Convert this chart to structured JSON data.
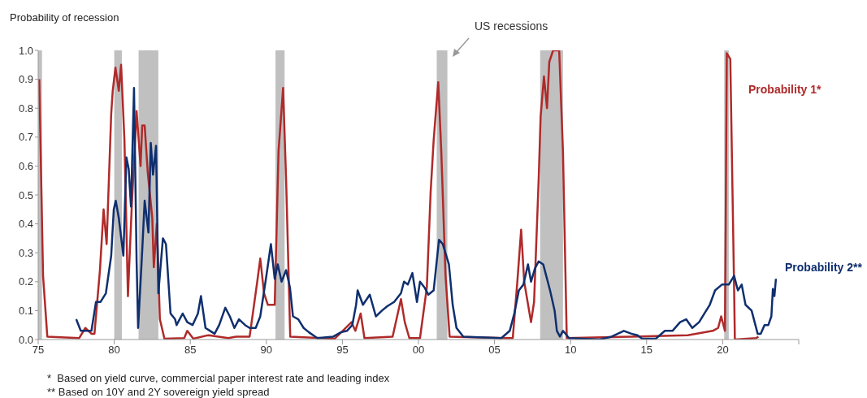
{
  "chart_data": {
    "type": "line",
    "ylabel": "Probability of recession",
    "xlim": [
      1975,
      2025
    ],
    "xticks": [
      {
        "value": 1975,
        "label": "75"
      },
      {
        "value": 1980,
        "label": "80"
      },
      {
        "value": 1985,
        "label": "85"
      },
      {
        "value": 1990,
        "label": "90"
      },
      {
        "value": 1995,
        "label": "95"
      },
      {
        "value": 2000,
        "label": "00"
      },
      {
        "value": 2005,
        "label": "05"
      },
      {
        "value": 2010,
        "label": "10"
      },
      {
        "value": 2015,
        "label": "15"
      },
      {
        "value": 2020,
        "label": "20"
      },
      {
        "value": 2025,
        "label": null
      }
    ],
    "ylim": [
      0,
      1
    ],
    "yticks": [
      {
        "value": 0,
        "label": "0.0"
      },
      0.1,
      0.2,
      0.3,
      0.4,
      0.5,
      0.6,
      0.7,
      0.8,
      0.9,
      {
        "value": 1,
        "label": "1.0"
      }
    ],
    "grid": false,
    "marker": "none",
    "line_style": "solid",
    "bands": [
      {
        "axis": "x",
        "from": 1975,
        "to": 1975.25,
        "color": "#c0c0c0"
      },
      {
        "axis": "x",
        "from": 1980,
        "to": 1980.5,
        "color": "#c0c0c0"
      },
      {
        "axis": "x",
        "from": 1981.6,
        "to": 1982.9,
        "color": "#c0c0c0"
      },
      {
        "axis": "x",
        "from": 1990.6,
        "to": 1991.2,
        "color": "#c0c0c0"
      },
      {
        "axis": "x",
        "from": 2001.2,
        "to": 2001.9,
        "color": "#c0c0c0"
      },
      {
        "axis": "x",
        "from": 2008,
        "to": 2009.5,
        "color": "#c0c0c0"
      },
      {
        "axis": "x",
        "from": 2020.1,
        "to": 2020.4,
        "color": "#c0c0c0"
      }
    ],
    "annotations": [
      "US recessions",
      "*  Based on yield curve, commercial paper interest rate and leading index",
      "** Based on 10Y and 2Y sovereign yield spread"
    ],
    "series": [
      {
        "name": "Probability 1*",
        "color": "#b02a2a",
        "x": [
          1975.07,
          1975.32,
          1975.6,
          1977.7,
          1978.1,
          1978.5,
          1978.7,
          1979.06,
          1979.3,
          1979.5,
          1979.8,
          1979.9,
          1980.08,
          1980.3,
          1980.45,
          1980.67,
          1980.9,
          1981.15,
          1981.47,
          1981.73,
          1981.84,
          1982,
          1982.2,
          1982.5,
          1982.6,
          1982.8,
          1983,
          1983.3,
          1984.6,
          1984.8,
          1985.2,
          1986.2,
          1987.5,
          1988,
          1988.9,
          1989.4,
          1989.6,
          1989.85,
          1990.1,
          1990.55,
          1990.8,
          1991.1,
          1991.3,
          1991.57,
          1994.5,
          1995.6,
          1995.85,
          1996.2,
          1996.45,
          1998.3,
          1998.85,
          1999.1,
          1999.4,
          2000.1,
          2000.55,
          2000.8,
          2001,
          2001.3,
          2001.5,
          2001.78,
          2002.05,
          2005.7,
          2006.2,
          2006.5,
          2006.75,
          2006.95,
          2007.4,
          2007.6,
          2007.9,
          2008.03,
          2008.25,
          2008.45,
          2008.6,
          2008.85,
          2009.25,
          2009.5,
          2009.75,
          2014,
          2017.7,
          2019.35,
          2019.7,
          2019.9,
          2020.15,
          2020.27,
          2020.5,
          2020.75,
          2020.8,
          2022.2,
          2022.35
        ],
        "values": [
          0.9,
          0.22,
          0.01,
          0.005,
          0.04,
          0.02,
          0.02,
          0.24,
          0.45,
          0.33,
          0.78,
          0.86,
          0.94,
          0.86,
          0.95,
          0.69,
          0.15,
          0.46,
          0.79,
          0.6,
          0.74,
          0.74,
          0.58,
          0.42,
          0.25,
          0.4,
          0.07,
          0.003,
          0.005,
          0.03,
          0.003,
          0.015,
          0.005,
          0.01,
          0.01,
          0.2,
          0.28,
          0.16,
          0.12,
          0.12,
          0.65,
          0.87,
          0.55,
          0.01,
          0.003,
          0.06,
          0.03,
          0.09,
          0.005,
          0.01,
          0.14,
          0.06,
          0.005,
          0.005,
          0.18,
          0.51,
          0.69,
          0.89,
          0.65,
          0.22,
          0.01,
          0.005,
          0.005,
          0.2,
          0.38,
          0.2,
          0.06,
          0.13,
          0.55,
          0.77,
          0.91,
          0.8,
          0.96,
          1,
          1,
          0.65,
          0.005,
          0.01,
          0.015,
          0.03,
          0.04,
          0.08,
          0.03,
          0.99,
          0.97,
          0.18,
          0,
          0.005,
          0.01
        ]
      },
      {
        "name": "Probability 2**",
        "color": "#0f2f6e",
        "x": [
          1977.5,
          1977.8,
          1978.2,
          1978.5,
          1978.8,
          1979.1,
          1979.45,
          1979.8,
          1979.97,
          1980.1,
          1980.3,
          1980.6,
          1980.8,
          1980.95,
          1981.1,
          1981.3,
          1981.47,
          1981.57,
          1981.85,
          1982,
          1982.25,
          1982.4,
          1982.55,
          1982.75,
          1982.9,
          1983.2,
          1983.4,
          1983.7,
          1984,
          1984.1,
          1984.5,
          1984.8,
          1985.15,
          1985.5,
          1985.7,
          1986,
          1986.3,
          1986.6,
          1986.9,
          1987.3,
          1987.6,
          1987.9,
          1988.2,
          1988.6,
          1988.9,
          1989.3,
          1989.6,
          1990,
          1990.3,
          1990.55,
          1990.75,
          1991,
          1991.3,
          1991.55,
          1991.75,
          1992.1,
          1992.45,
          1992.8,
          1993.35,
          1994.4,
          1994.9,
          1995.3,
          1995.65,
          1995.9,
          1996,
          1996.35,
          1996.8,
          1997.2,
          1997.6,
          1997.95,
          1998.4,
          1998.85,
          1999.05,
          1999.3,
          1999.6,
          1999.9,
          2000.1,
          2000.4,
          2000.65,
          2001,
          2001.35,
          2001.6,
          2002,
          2002.25,
          2002.5,
          2002.95,
          2005.45,
          2006,
          2006.3,
          2006.6,
          2006.9,
          2007.2,
          2007.4,
          2007.65,
          2007.9,
          2008.2,
          2008.4,
          2008.65,
          2008.95,
          2009.1,
          2009.3,
          2009.5,
          2009.9,
          2011.9,
          2012.7,
          2013.5,
          2014,
          2014.4,
          2014.7,
          2015.6,
          2016.2,
          2016.7,
          2017.2,
          2017.6,
          2018,
          2018.45,
          2018.8,
          2019.15,
          2019.5,
          2019.95,
          2020.4,
          2020.75,
          2021,
          2021.25,
          2021.5,
          2021.9,
          2022.3,
          2022.5,
          2022.75,
          2023,
          2023.2,
          2023.3,
          2023.4,
          2023.5
        ],
        "values": [
          0.07,
          0.03,
          0.03,
          0.03,
          0.13,
          0.13,
          0.16,
          0.29,
          0.45,
          0.48,
          0.42,
          0.29,
          0.63,
          0.59,
          0.46,
          0.87,
          0.27,
          0.04,
          0.32,
          0.48,
          0.37,
          0.68,
          0.57,
          0.67,
          0.16,
          0.35,
          0.33,
          0.09,
          0.07,
          0.05,
          0.09,
          0.06,
          0.05,
          0.09,
          0.15,
          0.04,
          0.03,
          0.02,
          0.05,
          0.11,
          0.08,
          0.04,
          0.07,
          0.05,
          0.04,
          0.04,
          0.08,
          0.22,
          0.33,
          0.21,
          0.26,
          0.2,
          0.24,
          0.18,
          0.08,
          0.07,
          0.04,
          0.025,
          0.005,
          0.01,
          0.025,
          0.03,
          0.05,
          0.12,
          0.17,
          0.12,
          0.155,
          0.08,
          0.1,
          0.115,
          0.13,
          0.16,
          0.2,
          0.19,
          0.23,
          0.13,
          0.2,
          0.18,
          0.155,
          0.17,
          0.345,
          0.33,
          0.26,
          0.12,
          0.04,
          0.01,
          0.005,
          0.03,
          0.09,
          0.17,
          0.19,
          0.26,
          0.2,
          0.245,
          0.27,
          0.26,
          0.22,
          0.17,
          0.1,
          0.03,
          0.01,
          0.03,
          0.005,
          0,
          0.01,
          0.03,
          0.02,
          0.015,
          0.003,
          0.003,
          0.03,
          0.03,
          0.06,
          0.07,
          0.04,
          0.06,
          0.09,
          0.12,
          0.17,
          0.19,
          0.19,
          0.22,
          0.17,
          0.19,
          0.12,
          0.1,
          0.02,
          0.02,
          0.05,
          0.05,
          0.08,
          0.175,
          0.15,
          0.21
        ]
      }
    ]
  }
}
